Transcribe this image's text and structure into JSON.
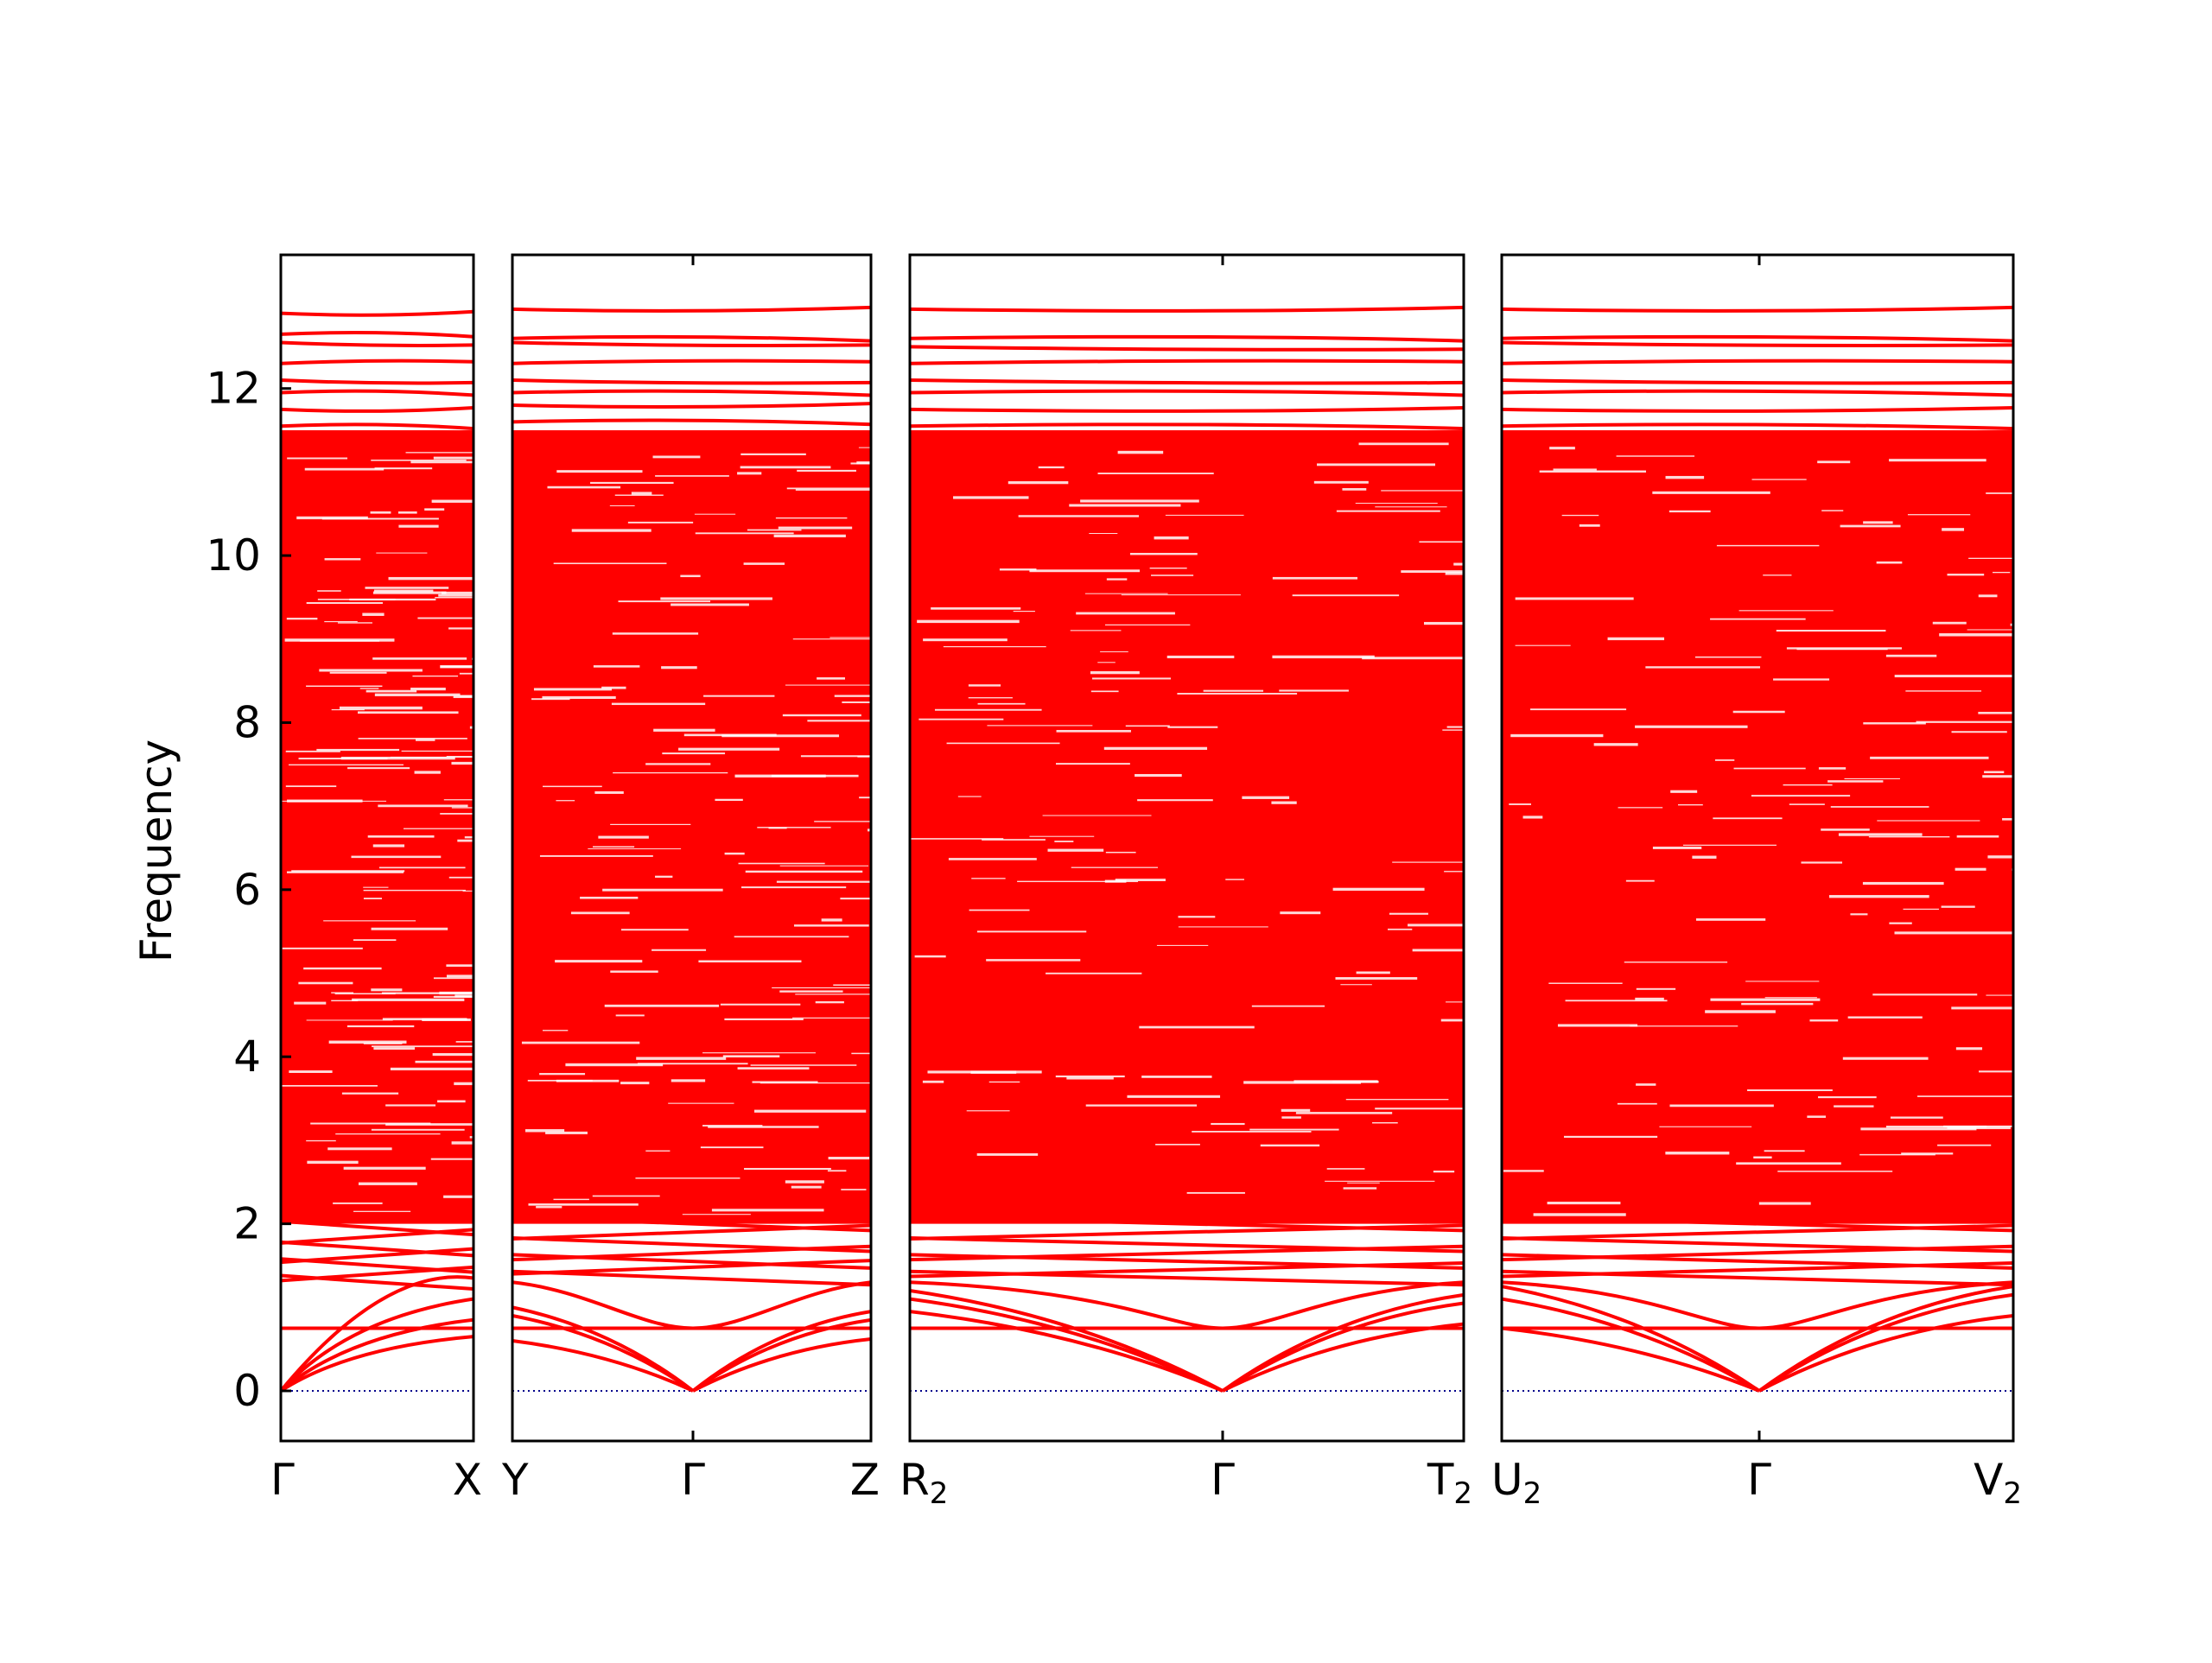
{
  "chart_data": {
    "type": "line",
    "ylabel": "Frequency",
    "ylim": [
      -0.6,
      13.6
    ],
    "yticks": [
      0,
      2,
      4,
      6,
      8,
      10,
      12
    ],
    "grid": false,
    "legend": "none",
    "colors": {
      "bands": "#ff0000",
      "zero_line": "#00008b",
      "frame": "#000000"
    },
    "segments": [
      {
        "path_labels": [
          {
            "main": "Γ",
            "sub": ""
          },
          {
            "main": "X",
            "sub": ""
          }
        ],
        "mid_label": {
          "main": "",
          "sub": ""
        },
        "acoustic_end": [
          0.65,
          0.85,
          1.1
        ],
        "optical_low": [
          0.75,
          1.3,
          1.4,
          1.5,
          1.62,
          1.7,
          1.85,
          1.95
        ],
        "top_bands": [
          12.9,
          12.65,
          12.55,
          12.3,
          12.1,
          11.95,
          11.75,
          11.55
        ]
      },
      {
        "path_labels": [
          {
            "main": "Y",
            "sub": ""
          },
          {
            "main": "Z",
            "sub": ""
          }
        ],
        "mid_label": {
          "main": "Γ",
          "sub": ""
        },
        "acoustic_start": [
          0.6,
          0.9,
          1.0
        ],
        "acoustic_end": [
          0.62,
          0.85,
          0.95
        ],
        "optical_low": [
          0.75,
          1.35,
          1.48,
          1.55,
          1.65,
          1.75,
          1.9,
          2.0
        ],
        "top_bands": [
          12.95,
          12.6,
          12.55,
          12.3,
          12.1,
          11.95,
          11.8,
          11.6
        ]
      },
      {
        "path_labels": [
          {
            "main": "R",
            "sub": "2"
          },
          {
            "main": "T",
            "sub": "2"
          }
        ],
        "mid_label": {
          "main": "Γ",
          "sub": ""
        },
        "acoustic_start": [
          0.95,
          1.1,
          1.2
        ],
        "acoustic_end": [
          0.8,
          1.05,
          1.15
        ],
        "optical_low": [
          0.75,
          1.35,
          1.45,
          1.55,
          1.65,
          1.75,
          1.9,
          2.0
        ],
        "top_bands": [
          12.95,
          12.6,
          12.5,
          12.3,
          12.1,
          11.95,
          11.75,
          11.55
        ]
      },
      {
        "path_labels": [
          {
            "main": "U",
            "sub": "2"
          },
          {
            "main": "V",
            "sub": "2"
          }
        ],
        "mid_label": {
          "main": "Γ",
          "sub": ""
        },
        "acoustic_start": [
          0.75,
          1.1,
          1.25
        ],
        "acoustic_end": [
          0.9,
          1.15,
          1.25
        ],
        "optical_low": [
          0.75,
          1.35,
          1.45,
          1.55,
          1.65,
          1.75,
          1.9,
          2.0
        ],
        "top_bands": [
          12.95,
          12.6,
          12.55,
          12.3,
          12.1,
          11.95,
          11.75,
          11.55
        ]
      }
    ]
  }
}
